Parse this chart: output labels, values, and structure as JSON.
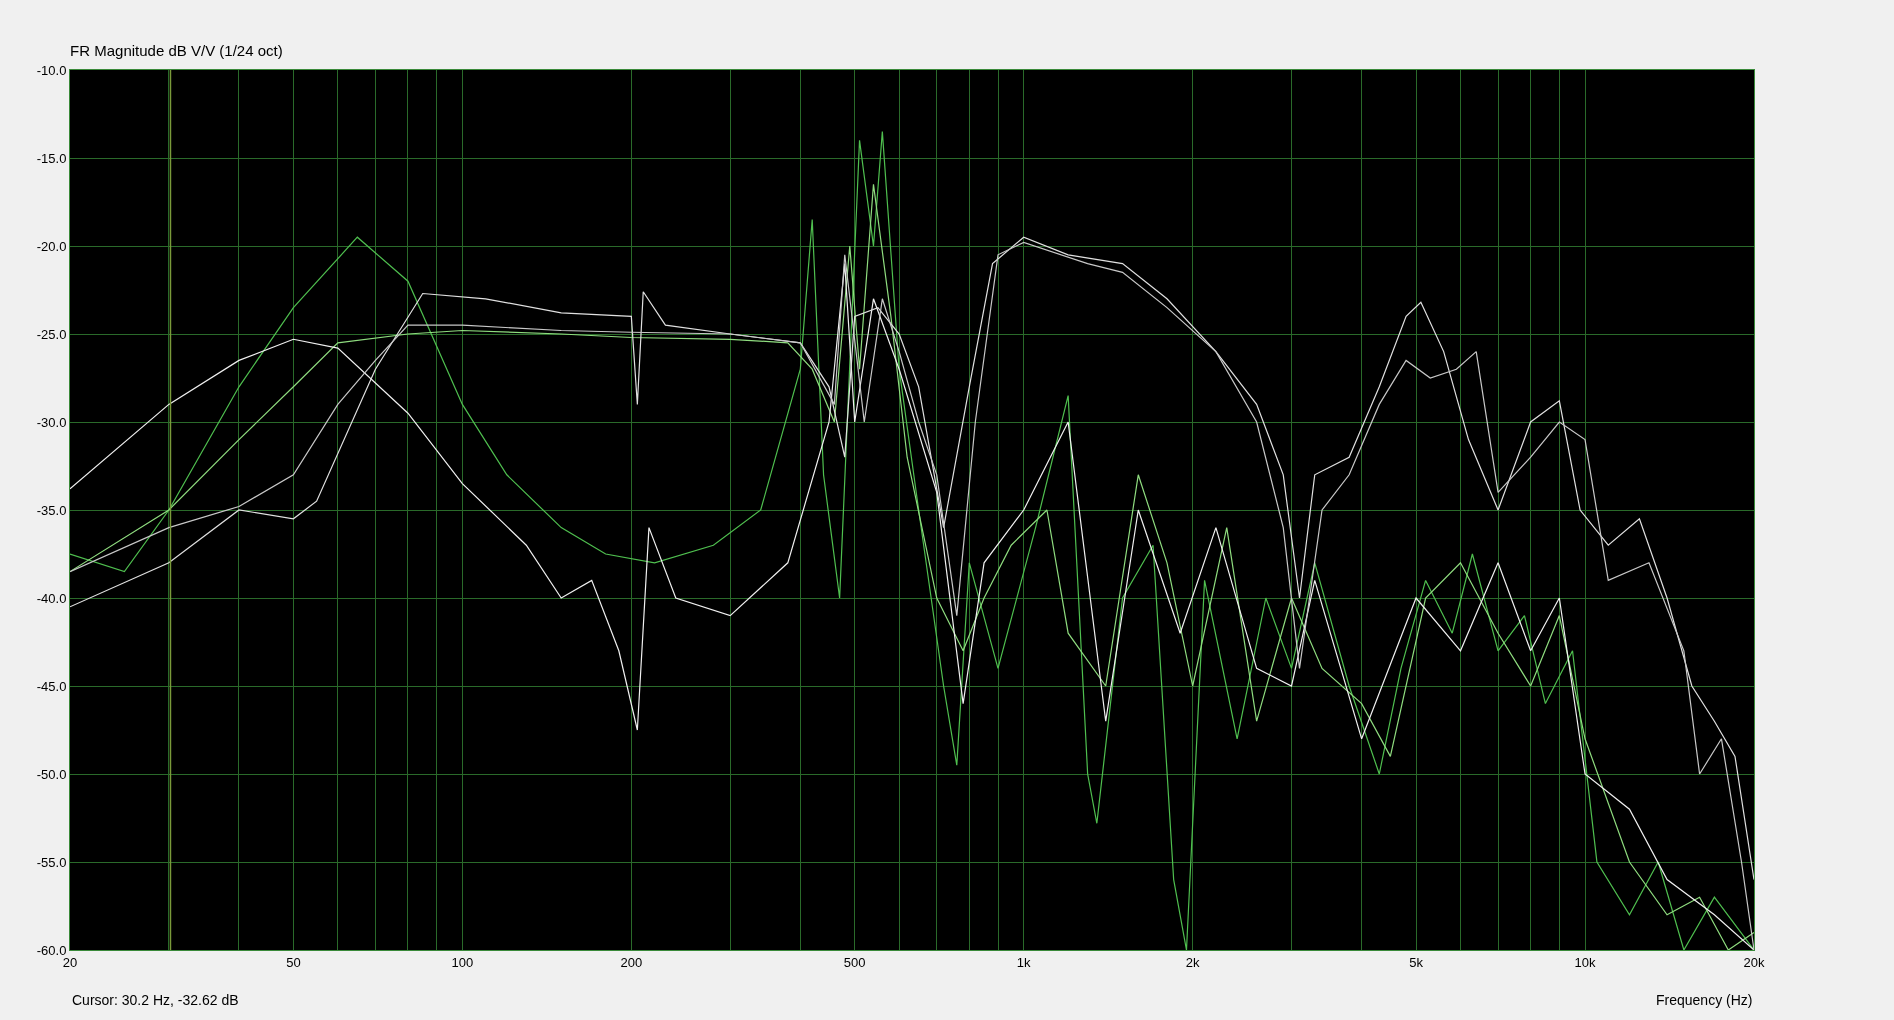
{
  "chart_data": {
    "type": "line",
    "title": "FR Magnitude dB V/V (1/24 oct)",
    "xlabel": "Frequency (Hz)",
    "annotations": [
      "Cursor: 30.2 Hz, -32.62 dB"
    ],
    "log": "x",
    "grid": true,
    "line_style": "solid",
    "marker": "none",
    "xlim": [
      20,
      20000
    ],
    "ylim": [
      -60,
      -10
    ],
    "xticks": [
      20,
      {
        "value": 30,
        "label": null
      },
      {
        "value": 40,
        "label": null
      },
      50,
      {
        "value": 60,
        "label": null
      },
      {
        "value": 70,
        "label": null
      },
      {
        "value": 80,
        "label": null
      },
      {
        "value": 90,
        "label": null
      },
      100,
      200,
      {
        "value": 300,
        "label": null
      },
      {
        "value": 400,
        "label": null
      },
      500,
      {
        "value": 600,
        "label": null
      },
      {
        "value": 700,
        "label": null
      },
      {
        "value": 800,
        "label": null
      },
      {
        "value": 900,
        "label": null
      },
      {
        "value": 1000,
        "label": "1k"
      },
      {
        "value": 2000,
        "label": "2k"
      },
      {
        "value": 3000,
        "label": null
      },
      {
        "value": 4000,
        "label": null
      },
      {
        "value": 5000,
        "label": "5k"
      },
      {
        "value": 6000,
        "label": null
      },
      {
        "value": 7000,
        "label": null
      },
      {
        "value": 8000,
        "label": null
      },
      {
        "value": 9000,
        "label": null
      },
      {
        "value": 10000,
        "label": "10k"
      },
      {
        "value": 20000,
        "label": "20k"
      }
    ],
    "yticks": [
      {
        "value": -60,
        "label": "-60.0"
      },
      {
        "value": -55,
        "label": "-55.0"
      },
      {
        "value": -50,
        "label": "-50.0"
      },
      {
        "value": -45,
        "label": "-45.0"
      },
      {
        "value": -40,
        "label": "-40.0"
      },
      {
        "value": -35,
        "label": "-35.0"
      },
      {
        "value": -30,
        "label": "-30.0"
      },
      {
        "value": -25,
        "label": "-25.0"
      },
      {
        "value": -20,
        "label": "-20.0"
      },
      {
        "value": -15,
        "label": "-15.0"
      },
      {
        "value": -10,
        "label": "-10.0"
      }
    ],
    "ref_lines": [
      {
        "axis": "x",
        "value": 30.2,
        "color": "#7a9a3a"
      }
    ],
    "series": [
      {
        "color": "#4fbf4f",
        "x": [
          20,
          25,
          30,
          40,
          50,
          65,
          80,
          100,
          120,
          150,
          180,
          220,
          280,
          340,
          400,
          420,
          440,
          470,
          510,
          540,
          560,
          600,
          650,
          720,
          760,
          800,
          900,
          1050,
          1200,
          1300,
          1350,
          1500,
          1700,
          1850,
          1950,
          2100,
          2400,
          2700,
          3000,
          3300,
          3800,
          4300,
          4700,
          5200,
          5800,
          6300,
          7000,
          7800,
          8500,
          9500,
          10500,
          12000,
          13500,
          15000,
          17000,
          20000
        ],
        "values": [
          -37.5,
          -38.5,
          -35,
          -28,
          -23.5,
          -19.5,
          -22,
          -29,
          -33,
          -36,
          -37.5,
          -38,
          -37,
          -35,
          -27,
          -18.5,
          -33,
          -40,
          -14,
          -20,
          -13.5,
          -27,
          -35,
          -45,
          -49.5,
          -38,
          -44,
          -36,
          -28.5,
          -50,
          -52.8,
          -40,
          -37,
          -56,
          -60,
          -39,
          -48,
          -40,
          -44,
          -38,
          -45,
          -50,
          -44,
          -39,
          -42,
          -37.5,
          -43,
          -41,
          -46,
          -43,
          -55,
          -58,
          -55,
          -60,
          -57,
          -60
        ]
      },
      {
        "color": "#8fdc7f",
        "x": [
          20,
          30,
          40,
          50,
          60,
          80,
          100,
          150,
          200,
          300,
          380,
          420,
          460,
          490,
          510,
          540,
          580,
          620,
          700,
          780,
          850,
          950,
          1100,
          1200,
          1400,
          1600,
          1800,
          2000,
          2300,
          2600,
          3000,
          3400,
          4000,
          4500,
          5200,
          6000,
          7000,
          8000,
          9000,
          10000,
          12000,
          14000,
          16000,
          18000,
          20000
        ],
        "values": [
          -38.5,
          -35,
          -31,
          -28,
          -25.5,
          -25,
          -24.8,
          -25,
          -25.2,
          -25.3,
          -25.5,
          -27,
          -30,
          -20,
          -27,
          -16.5,
          -24,
          -32,
          -40,
          -43,
          -40,
          -37,
          -35,
          -42,
          -45,
          -33,
          -38,
          -45,
          -36,
          -47,
          -40,
          -44,
          -46,
          -49,
          -40,
          -38,
          -42,
          -45,
          -41,
          -48,
          -55,
          -58,
          -57,
          -60,
          -59
        ]
      },
      {
        "color": "#f0f0f0",
        "x": [
          20,
          30,
          40,
          50,
          60,
          80,
          100,
          130,
          150,
          170,
          190,
          205,
          215,
          240,
          300,
          380,
          450,
          480,
          500,
          540,
          600,
          700,
          780,
          850,
          1000,
          1200,
          1400,
          1600,
          1900,
          2200,
          2600,
          3000,
          3300,
          4000,
          5000,
          6000,
          7000,
          8000,
          9000,
          10000,
          12000,
          14000,
          17000,
          20000
        ],
        "values": [
          -33.8,
          -29,
          -26.5,
          -25.3,
          -25.8,
          -29.5,
          -33.5,
          -37,
          -40,
          -39,
          -43,
          -47.5,
          -36,
          -40,
          -41,
          -38,
          -30,
          -21,
          -30,
          -23,
          -27,
          -34,
          -46,
          -38,
          -35,
          -30,
          -47,
          -35,
          -42,
          -36,
          -44,
          -45,
          -39,
          -48,
          -40,
          -43,
          -38,
          -43,
          -40,
          -50,
          -52,
          -56,
          -58,
          -60
        ]
      },
      {
        "color": "#e0e0e0",
        "x": [
          20,
          30,
          40,
          50,
          55,
          70,
          85,
          110,
          150,
          200,
          205,
          210,
          230,
          300,
          400,
          450,
          480,
          500,
          550,
          600,
          650,
          720,
          800,
          880,
          1000,
          1200,
          1500,
          1800,
          2200,
          2600,
          2900,
          3100,
          3300,
          3800,
          4300,
          4800,
          5100,
          5600,
          6200,
          7000,
          8000,
          9000,
          9800,
          11000,
          12500,
          14000,
          15500,
          17000,
          18500,
          20000
        ],
        "values": [
          -40.5,
          -38,
          -35,
          -35.5,
          -34.5,
          -27,
          -22.7,
          -23,
          -23.8,
          -24,
          -29,
          -22.6,
          -24.5,
          -25,
          -25.5,
          -28,
          -32,
          -24,
          -23.5,
          -25,
          -28,
          -36,
          -28,
          -21,
          -19.5,
          -20.5,
          -21,
          -23,
          -26,
          -29,
          -33,
          -40,
          -33,
          -32,
          -28,
          -24,
          -23.2,
          -26,
          -31,
          -35,
          -30,
          -28.8,
          -35,
          -37,
          -35.5,
          -40,
          -45,
          -47,
          -49,
          -56
        ]
      },
      {
        "color": "#c8c8c8",
        "x": [
          20,
          30,
          40,
          50,
          60,
          70,
          80,
          100,
          150,
          200,
          300,
          400,
          460,
          480,
          520,
          560,
          600,
          650,
          700,
          760,
          820,
          900,
          1000,
          1300,
          1500,
          1800,
          2200,
          2600,
          2900,
          3100,
          3400,
          3800,
          4300,
          4800,
          5300,
          5900,
          6400,
          7000,
          8000,
          9000,
          10000,
          11000,
          13000,
          15000,
          16000,
          17500,
          19000,
          20000
        ],
        "values": [
          -38.5,
          -36,
          -34.8,
          -33,
          -29,
          -26.5,
          -24.5,
          -24.5,
          -24.8,
          -24.9,
          -25,
          -25.5,
          -29,
          -20.5,
          -30,
          -23,
          -26,
          -30,
          -33,
          -41,
          -30,
          -20.5,
          -19.8,
          -21,
          -21.5,
          -23.5,
          -26,
          -30,
          -36,
          -44,
          -35,
          -33,
          -29,
          -26.5,
          -27.5,
          -27,
          -26,
          -34,
          -32,
          -30,
          -31,
          -39,
          -38,
          -43,
          -50,
          -48,
          -55,
          -60
        ]
      }
    ]
  }
}
